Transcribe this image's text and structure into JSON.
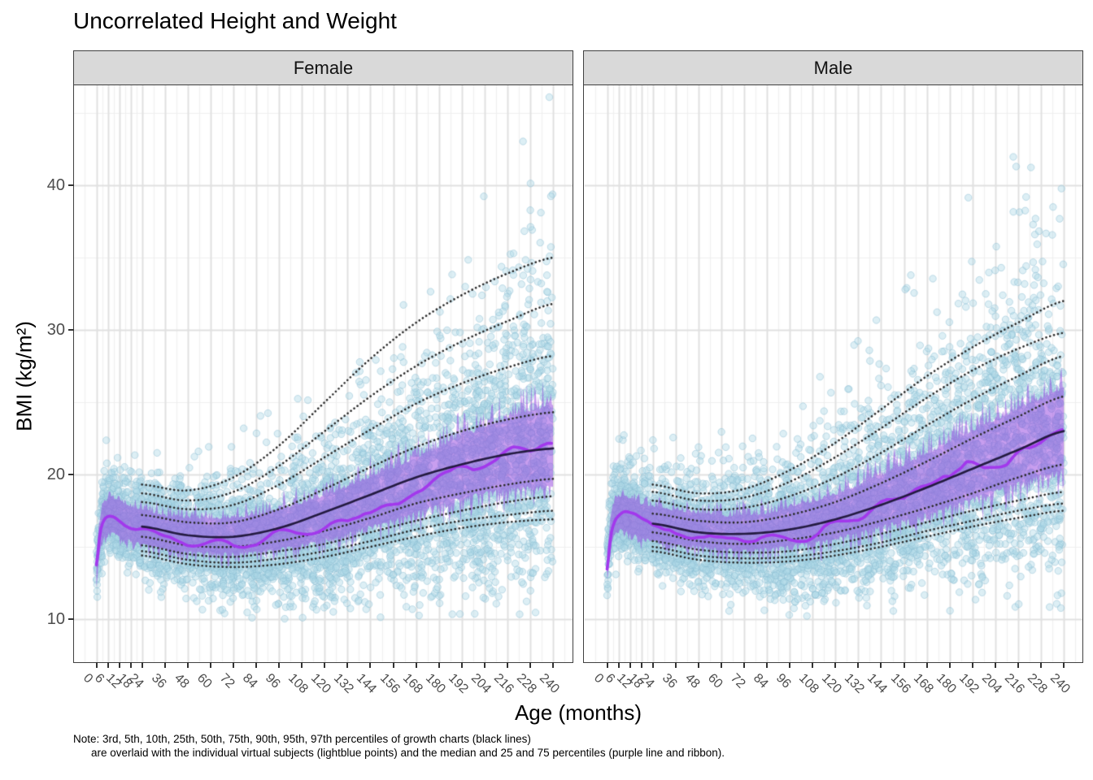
{
  "title": "Uncorrelated Height and Weight",
  "note": {
    "line1": "Note: 3rd, 5th, 10th, 25th, 50th, 75th, 90th, 95th, 97th percentiles of growth charts (black lines)",
    "line2": "are overlaid with the individual virtual subjects (lightblue points) and the median and 25 and 75 percentiles (purple line and ribbon)."
  },
  "colors": {
    "point_fill": "#ADD8E6",
    "point_stroke": "#88BAD0",
    "ribbon_fill": "#923EDF",
    "subject_median_line": "#A238EC",
    "growth_percentile_dotted": "#2B2B2B",
    "growth_median_solid": "#241B41",
    "strip_background": "#D9D9D9",
    "panel_border": "#404040",
    "grid_major": "#E1E1E1",
    "grid_minor": "#F0F0F0",
    "tick_label": "#4D4D4D"
  },
  "chart_data": {
    "type": "scatter",
    "title": "Uncorrelated Height and Weight",
    "xlabel": "Age (months)",
    "ylabel": "BMI (kg/m²)",
    "x_ticks": [
      0,
      6,
      12,
      18,
      24,
      36,
      48,
      60,
      72,
      84,
      96,
      108,
      120,
      132,
      144,
      156,
      168,
      180,
      192,
      204,
      216,
      228,
      240
    ],
    "y_ticks": [
      10,
      20,
      30,
      40
    ],
    "y_minor_ticks": [
      15,
      25,
      35,
      45
    ],
    "xlim": [
      -12,
      252
    ],
    "ylim": [
      7,
      47
    ],
    "legend": "none",
    "facets": [
      {
        "name": "Female",
        "growth_chart_percentiles": {
          "ages": [
            24,
            48,
            72,
            96,
            120,
            144,
            168,
            192,
            216,
            240
          ],
          "P3": [
            14.4,
            13.8,
            13.6,
            13.8,
            14.3,
            15.0,
            15.7,
            16.3,
            16.7,
            16.9
          ],
          "P5": [
            14.7,
            14.1,
            13.9,
            14.2,
            14.7,
            15.4,
            16.2,
            16.8,
            17.2,
            17.5
          ],
          "P10": [
            15.1,
            14.5,
            14.3,
            14.7,
            15.2,
            16.0,
            16.8,
            17.5,
            18.1,
            18.5
          ],
          "P25": [
            15.7,
            15.1,
            15.0,
            15.4,
            16.1,
            17.0,
            18.0,
            18.7,
            19.3,
            19.7
          ],
          "P50": [
            16.4,
            15.8,
            15.7,
            16.3,
            17.4,
            18.6,
            19.8,
            20.7,
            21.4,
            21.8
          ],
          "P75": [
            17.2,
            16.7,
            16.7,
            17.6,
            19.0,
            20.5,
            21.9,
            23.0,
            23.8,
            24.3
          ],
          "P90": [
            18.1,
            17.6,
            17.9,
            19.3,
            21.2,
            23.1,
            24.9,
            26.3,
            27.4,
            28.2
          ],
          "P95": [
            18.7,
            18.2,
            18.8,
            20.6,
            23.0,
            25.4,
            27.5,
            29.2,
            30.6,
            31.8
          ],
          "P97": [
            19.3,
            18.9,
            19.8,
            22.0,
            25.0,
            28.0,
            30.5,
            32.4,
            33.9,
            35.0
          ]
        },
        "subject_summary": {
          "ages": [
            0,
            2,
            4,
            6,
            9,
            12,
            18,
            24,
            36,
            48,
            60,
            72,
            84,
            96,
            108,
            120,
            132,
            144,
            156,
            168,
            180,
            192,
            204,
            216,
            228,
            240
          ],
          "median": [
            13.6,
            15.9,
            16.8,
            17.1,
            17.15,
            16.95,
            16.6,
            16.3,
            15.9,
            15.55,
            15.4,
            15.35,
            15.45,
            15.7,
            16.05,
            16.5,
            17.0,
            17.55,
            18.15,
            18.75,
            19.35,
            19.95,
            20.5,
            21.0,
            21.45,
            21.75
          ],
          "q25": [
            12.8,
            14.9,
            15.8,
            16.1,
            16.1,
            15.9,
            15.6,
            15.35,
            15.0,
            14.85,
            14.8,
            14.75,
            14.85,
            15.05,
            15.35,
            15.75,
            16.15,
            16.6,
            17.1,
            17.6,
            18.1,
            18.55,
            18.95,
            19.2,
            19.3,
            19.35
          ],
          "q75": [
            14.4,
            16.9,
            17.8,
            18.1,
            18.15,
            17.95,
            17.6,
            17.4,
            17.0,
            16.85,
            16.8,
            16.85,
            17.05,
            17.4,
            17.85,
            18.4,
            19.0,
            19.65,
            20.3,
            21.0,
            21.7,
            22.4,
            23.05,
            23.65,
            24.2,
            24.65
          ]
        },
        "subject_points": {
          "approx_count": 5200,
          "age_range": [
            0,
            240
          ],
          "bmi_range": [
            9.5,
            46.5
          ]
        }
      },
      {
        "name": "Male",
        "growth_chart_percentiles": {
          "ages": [
            24,
            48,
            72,
            96,
            120,
            144,
            168,
            192,
            216,
            240
          ],
          "P3": [
            14.7,
            14.1,
            13.9,
            14.0,
            14.4,
            15.0,
            15.7,
            16.4,
            17.0,
            17.5
          ],
          "P5": [
            15.0,
            14.4,
            14.2,
            14.3,
            14.7,
            15.3,
            16.1,
            16.8,
            17.5,
            18.0
          ],
          "P10": [
            15.4,
            14.8,
            14.6,
            14.7,
            15.2,
            15.9,
            16.7,
            17.5,
            18.2,
            18.8
          ],
          "P25": [
            16.0,
            15.4,
            15.2,
            15.5,
            16.0,
            16.8,
            17.7,
            18.7,
            19.8,
            20.7
          ],
          "P50": [
            16.6,
            16.0,
            15.9,
            16.2,
            16.9,
            17.9,
            19.1,
            20.4,
            21.7,
            23.0
          ],
          "P75": [
            17.3,
            16.8,
            16.7,
            17.2,
            18.1,
            19.4,
            20.9,
            22.5,
            24.0,
            25.4
          ],
          "P90": [
            18.2,
            17.6,
            17.7,
            18.5,
            19.8,
            21.5,
            23.4,
            25.2,
            26.8,
            28.2
          ],
          "P95": [
            18.8,
            18.2,
            18.4,
            19.5,
            21.2,
            23.2,
            25.3,
            27.2,
            28.7,
            29.8
          ],
          "P97": [
            19.3,
            18.7,
            19.0,
            20.3,
            22.2,
            24.5,
            26.8,
            28.8,
            30.5,
            32.0
          ]
        },
        "subject_summary": {
          "ages": [
            0,
            2,
            4,
            6,
            9,
            12,
            18,
            24,
            36,
            48,
            60,
            72,
            84,
            96,
            108,
            120,
            132,
            144,
            156,
            168,
            180,
            192,
            204,
            216,
            228,
            240
          ],
          "median": [
            13.8,
            16.1,
            17.0,
            17.3,
            17.35,
            17.15,
            16.8,
            16.55,
            16.1,
            15.8,
            15.6,
            15.55,
            15.65,
            15.85,
            16.2,
            16.6,
            17.1,
            17.7,
            18.4,
            19.1,
            19.85,
            20.6,
            21.3,
            22.0,
            22.55,
            22.95
          ],
          "q25": [
            13.0,
            15.1,
            16.0,
            16.3,
            16.35,
            16.15,
            15.8,
            15.6,
            15.35,
            15.2,
            15.05,
            15.0,
            15.05,
            15.25,
            15.5,
            15.8,
            16.2,
            16.6,
            17.05,
            17.5,
            18.0,
            18.5,
            19.05,
            19.6,
            20.1,
            20.55
          ],
          "q75": [
            14.6,
            17.1,
            18.0,
            18.3,
            18.35,
            18.15,
            17.8,
            17.65,
            17.35,
            17.15,
            16.95,
            17.05,
            17.15,
            17.55,
            17.95,
            18.45,
            19.05,
            19.75,
            20.5,
            21.25,
            22.05,
            22.85,
            23.6,
            24.35,
            25.05,
            25.75
          ]
        },
        "subject_points": {
          "approx_count": 5200,
          "age_range": [
            0,
            240
          ],
          "bmi_range": [
            9.5,
            46.5
          ]
        }
      }
    ]
  }
}
